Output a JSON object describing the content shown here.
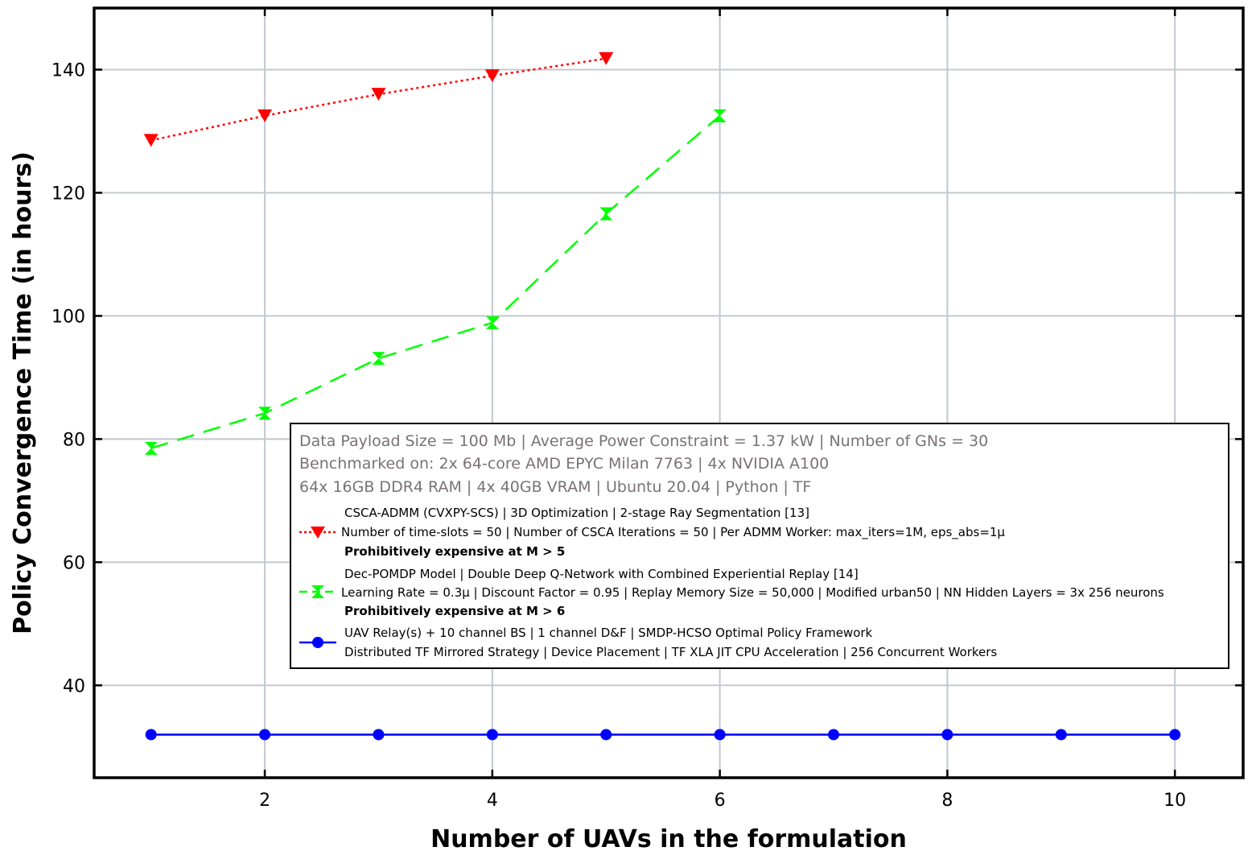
{
  "chart_data": {
    "type": "line",
    "title": "",
    "xlabel": "Number of UAVs in the formulation",
    "ylabel": "Policy Convergence Time (in hours)",
    "xlim": [
      0.5,
      10.6
    ],
    "ylim": [
      25,
      150
    ],
    "x_ticks": [
      2,
      4,
      6,
      8,
      10
    ],
    "y_ticks": [
      40,
      60,
      80,
      100,
      120,
      140
    ],
    "grid": true,
    "legend_placement": "lower-right",
    "series": [
      {
        "key": "csca",
        "color": "#ff0000",
        "line_style": "dotted",
        "marker": "triangle-down",
        "x": [
          1,
          2,
          3,
          4,
          5
        ],
        "values": [
          128.5,
          132.5,
          136,
          139,
          141.8
        ]
      },
      {
        "key": "pomdp",
        "color": "#00ff00",
        "line_style": "dashed",
        "marker": "bowtie",
        "x": [
          1,
          2,
          3,
          4,
          5,
          6
        ],
        "values": [
          78.5,
          84.2,
          93.1,
          98.9,
          116.6,
          132.5
        ]
      },
      {
        "key": "uav",
        "color": "#0000ff",
        "line_style": "solid",
        "marker": "circle",
        "x": [
          1,
          2,
          3,
          4,
          5,
          6,
          7,
          8,
          9,
          10
        ],
        "values": [
          32,
          32,
          32,
          32,
          32,
          32,
          32,
          32,
          32,
          32
        ]
      }
    ],
    "legend": {
      "info_lines": [
        "Data Payload Size = 100 Mb | Average Power Constraint = 1.37 kW | Number of GNs = 30",
        "Benchmarked on: 2x 64-core AMD EPYC Milan 7763 | 4x NVIDIA A100",
        "64x 16GB DDR4 RAM | 4x 40GB VRAM | Ubuntu 20.04 | Python | TF"
      ],
      "entries": [
        {
          "line1": "CSCA-ADMM (CVXPY-SCS) | 3D Optimization | 2-stage Ray Segmentation [13]",
          "line2": "Number of time-slots = 50 | Number of CSCA Iterations = 50 | Per ADMM Worker: max_iters=1M, eps_abs=1μ",
          "line3": "Prohibitively expensive at M > 5"
        },
        {
          "line1": "Dec-POMDP Model | Double Deep Q-Network with Combined Experiential Replay [14]",
          "line2": "Learning Rate = 0.3μ | Discount Factor = 0.95 | Replay Memory Size = 50,000 | Modified urban50 | NN Hidden Layers = 3x 256 neurons",
          "line3": "Prohibitively expensive at M > 6"
        },
        {
          "line1": "UAV Relay(s) + 10 channel BS | 1 channel D&F | SMDP-HCSO Optimal Policy Framework",
          "line2": "Distributed TF Mirrored Strategy | Device Placement | TF XLA JIT CPU Acceleration | 256 Concurrent Workers"
        }
      ]
    }
  }
}
